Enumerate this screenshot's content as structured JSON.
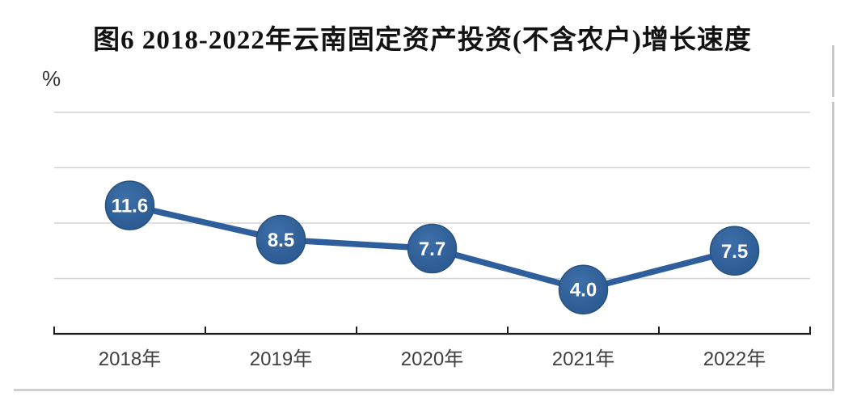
{
  "figure": {
    "title": "图6 2018-2022年云南固定资产投资(不含农户)增长速度",
    "unit_label": "%"
  },
  "chart_data": {
    "type": "line",
    "title": "图6 2018-2022年云南固定资产投资(不含农户)增长速度",
    "categories": [
      "2018年",
      "2019年",
      "2020年",
      "2021年",
      "2022年"
    ],
    "values": [
      11.6,
      8.5,
      7.7,
      4.0,
      7.5
    ],
    "data_labels": [
      "11.6",
      "8.5",
      "7.7",
      "4.0",
      "7.5"
    ],
    "xlabel": "",
    "ylabel": "%",
    "ylim": [
      0,
      20
    ],
    "gridline_values": [
      5,
      10,
      15,
      20
    ],
    "grid": "horizontal",
    "legend": "none",
    "colors": {
      "line": "#2E5F9C",
      "marker_fill_light": "#3E6FA8",
      "marker_fill_dark": "#2A5890",
      "marker_edge": "#27517F",
      "marker_label": "#FFFFFF",
      "gridline": "#D4D4D4",
      "axis": "#1F1F1F",
      "tick_label": "#3F3F3F",
      "title": "#121212",
      "frame": "#C7C7C7"
    }
  }
}
